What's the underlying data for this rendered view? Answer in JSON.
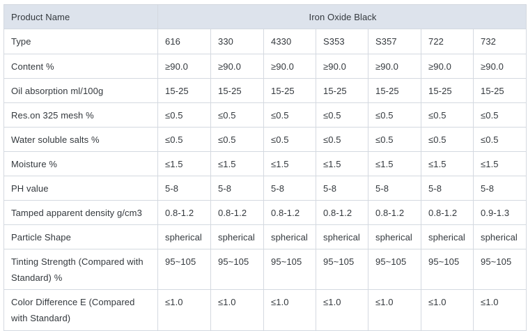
{
  "table": {
    "product_name_label": "Product Name",
    "product_name_value": "Iron Oxide Black",
    "rows": [
      {
        "label": "Type",
        "values": [
          "616",
          "330",
          "4330",
          "S353",
          "S357",
          "722",
          "732"
        ]
      },
      {
        "label": "Content %",
        "values": [
          "≥90.0",
          "≥90.0",
          "≥90.0",
          "≥90.0",
          "≥90.0",
          "≥90.0",
          "≥90.0"
        ]
      },
      {
        "label": "Oil absorption ml/100g",
        "values": [
          "15-25",
          "15-25",
          "15-25",
          "15-25",
          "15-25",
          "15-25",
          "15-25"
        ]
      },
      {
        "label": "Res.on 325 mesh %",
        "values": [
          "≤0.5",
          "≤0.5",
          "≤0.5",
          "≤0.5",
          "≤0.5",
          "≤0.5",
          "≤0.5"
        ]
      },
      {
        "label": "Water soluble salts %",
        "values": [
          "≤0.5",
          "≤0.5",
          "≤0.5",
          "≤0.5",
          "≤0.5",
          "≤0.5",
          "≤0.5"
        ]
      },
      {
        "label": "Moisture %",
        "values": [
          "≤1.5",
          "≤1.5",
          "≤1.5",
          "≤1.5",
          "≤1.5",
          "≤1.5",
          "≤1.5"
        ]
      },
      {
        "label": "PH value",
        "values": [
          "5-8",
          "5-8",
          "5-8",
          "5-8",
          "5-8",
          "5-8",
          "5-8"
        ]
      },
      {
        "label": "Tamped apparent density g/cm3",
        "values": [
          "0.8-1.2",
          "0.8-1.2",
          "0.8-1.2",
          "0.8-1.2",
          "0.8-1.2",
          "0.8-1.2",
          "0.9-1.3"
        ]
      },
      {
        "label": "Particle Shape",
        "values": [
          "spherical",
          "spherical",
          "spherical",
          "spherical",
          "spherical",
          "spherical",
          "spherical"
        ]
      },
      {
        "label": "Tinting Strength (Compared with Standard) %",
        "values": [
          "95~105",
          "95~105",
          "95~105",
          "95~105",
          "95~105",
          "95~105",
          "95~105"
        ]
      },
      {
        "label": "Color Difference E (Compared with Standard)",
        "values": [
          "≤1.0",
          "≤1.0",
          "≤1.0",
          "≤1.0",
          "≤1.0",
          "≤1.0",
          "≤1.0"
        ]
      }
    ],
    "colors": {
      "header_row_bg": "#dde3ec",
      "label_column_bg": "#eaeef5",
      "cell_bg": "#ffffff",
      "border": "#d4d9e0",
      "text": "#33383d"
    }
  }
}
